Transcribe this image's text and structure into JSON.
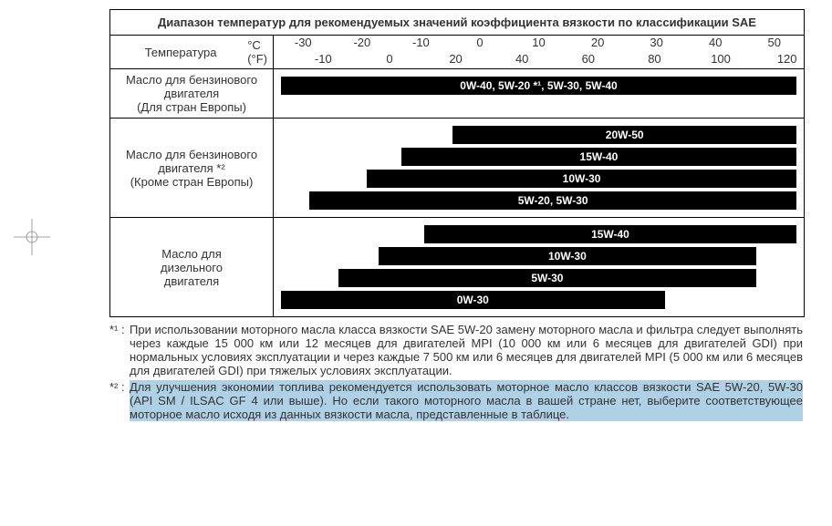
{
  "title": "Диапазон температур для рекомендуемых значений коэффициента вязкости по классификации SAE",
  "temperature": {
    "label": "Температура",
    "c_unit": "°C",
    "f_unit": "(°F)",
    "c_ticks": [
      "-30",
      "-20",
      "-10",
      "0",
      "10",
      "20",
      "30",
      "40",
      "50"
    ],
    "f_ticks": [
      "-10",
      "0",
      "20",
      "40",
      "60",
      "80",
      "100",
      "120"
    ],
    "c_min": -35,
    "c_max": 55
  },
  "rows": [
    {
      "label_lines": [
        "Масло для бензинового",
        "двигателя",
        "(Для стран Европы)"
      ],
      "bars": [
        {
          "label": "0W-40, 5W-20 *¹, 5W-30, 5W-40",
          "start": -35,
          "end": 55
        }
      ]
    },
    {
      "label_lines": [
        "Масло для бензинового",
        "двигателя *²",
        "(Кроме стран Европы)"
      ],
      "bars": [
        {
          "label": "20W-50",
          "start": -5,
          "end": 55
        },
        {
          "label": "15W-40",
          "start": -14,
          "end": 55
        },
        {
          "label": "10W-30",
          "start": -20,
          "end": 55
        },
        {
          "label": "5W-20, 5W-30",
          "start": -30,
          "end": 55
        }
      ]
    },
    {
      "label_lines": [
        "Масло для",
        "дизельного",
        "двигателя"
      ],
      "bars": [
        {
          "label": "15W-40",
          "start": -10,
          "end": 55
        },
        {
          "label": "10W-30",
          "start": -18,
          "end": 48
        },
        {
          "label": "5W-30",
          "start": -25,
          "end": 48
        },
        {
          "label": "0W-30",
          "start": -35,
          "end": 32
        }
      ]
    }
  ],
  "notes": [
    {
      "marker": "*¹ :",
      "text": "При использовании моторного масла класса вязкости SAE 5W-20 замену моторного масла и фильтра следует выполнять через каждые 15 000 км или 12 месяцев для двигателей MPI (10 000 км или 6 месяцев для двигателей GDI) при нормальных условиях эксплуатации и через каждые 7 500 км или 6 месяцев для двигателей MPI (5 000 км или 6  месяцев для двигателей GDI) при тяжелых условиях эксплуатации.",
      "highlighted": false
    },
    {
      "marker": "*² :",
      "text": "Для улучшения экономии топлива рекомендуется использовать моторное масло классов вязкости SAE 5W-20, 5W-30 (API SM / ILSAC GF 4 или выше). Но если такого моторного масла в вашей стране нет, выберите соответствующее моторное масло исходя из данных вязкости масла, представленные в таблице.",
      "highlighted": true
    }
  ],
  "colors": {
    "bar": "#000000",
    "bar_text": "#ffffff",
    "highlight_bg": "#afd1e5",
    "border": "#000000",
    "text": "#333333"
  }
}
